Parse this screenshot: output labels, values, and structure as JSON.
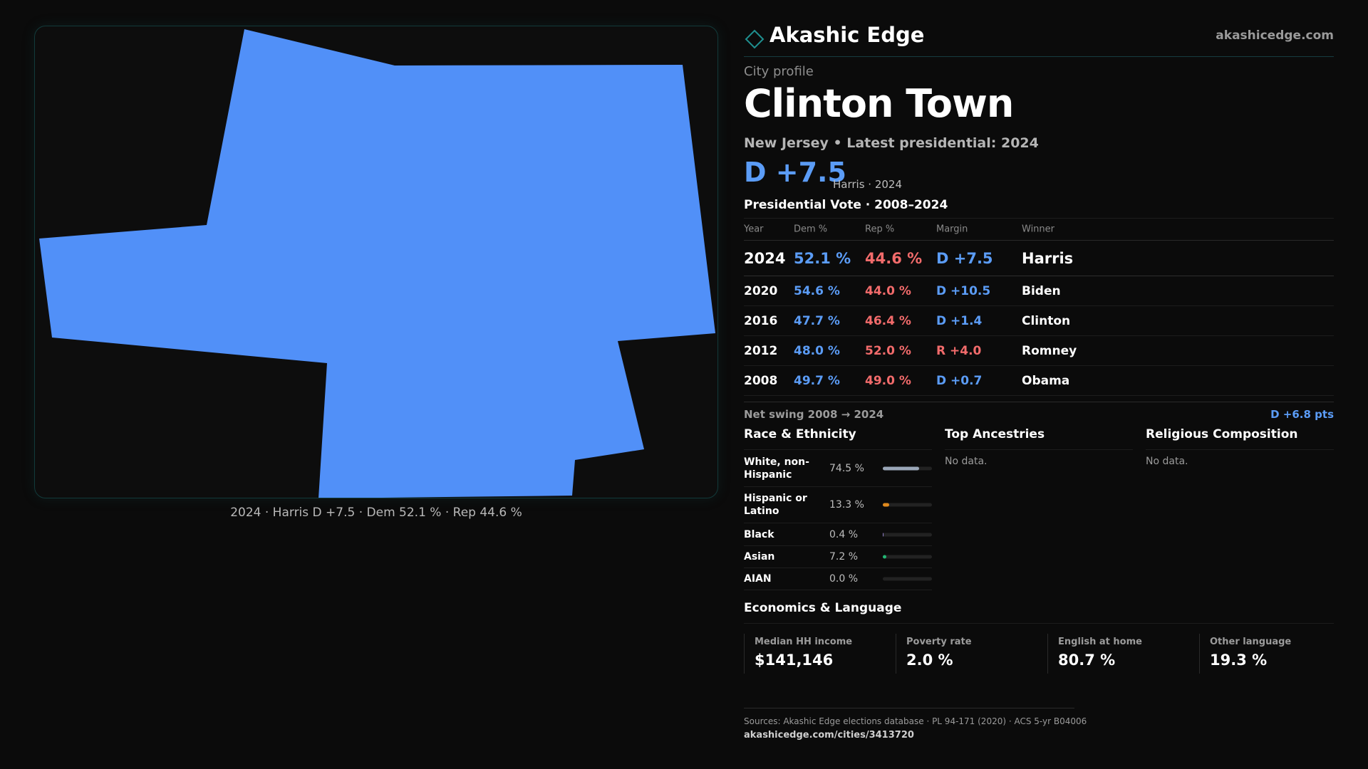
{
  "map": {
    "fill_color": "#5190F8",
    "caption": "2024 · Harris D +7.5 · Dem 52.1 % · Rep 44.6 %"
  },
  "brand": {
    "name": "Akashic Edge",
    "site": "akashicedge.com",
    "logo_icon": "diamond-outline-icon"
  },
  "profile": {
    "eyebrow": "City profile",
    "title": "Clinton Town",
    "subtitle": "New Jersey • Latest presidential: 2024",
    "headline_margin": "D +7.5",
    "headline_note": "Harris · 2024"
  },
  "vote_table": {
    "title": "Presidential Vote · 2008–2024",
    "headers": {
      "year": "Year",
      "dem": "Dem %",
      "rep": "Rep %",
      "margin": "Margin",
      "winner": "Winner"
    },
    "rows": [
      {
        "year": "2024",
        "dem": "52.1 %",
        "rep": "44.6 %",
        "margin": "D +7.5",
        "winner": "Harris",
        "party": "D"
      },
      {
        "year": "2020",
        "dem": "54.6 %",
        "rep": "44.0 %",
        "margin": "D +10.5",
        "winner": "Biden",
        "party": "D"
      },
      {
        "year": "2016",
        "dem": "47.7 %",
        "rep": "46.4 %",
        "margin": "D +1.4",
        "winner": "Clinton",
        "party": "D"
      },
      {
        "year": "2012",
        "dem": "48.0 %",
        "rep": "52.0 %",
        "margin": "R +4.0",
        "winner": "Romney",
        "party": "R"
      },
      {
        "year": "2008",
        "dem": "49.7 %",
        "rep": "49.0 %",
        "margin": "D +0.7",
        "winner": "Obama",
        "party": "D"
      }
    ]
  },
  "swing": {
    "label": "Net swing 2008 → 2024",
    "value": "D +6.8 pts"
  },
  "race": {
    "title": "Race & Ethnicity",
    "rows": [
      {
        "name": "White, non-Hispanic",
        "pct_label": "74.5 %",
        "pct": 74.5,
        "color": "#9aa7b8"
      },
      {
        "name": "Hispanic or Latino",
        "pct_label": "13.3 %",
        "pct": 13.3,
        "color": "#e08a1e"
      },
      {
        "name": "Black",
        "pct_label": "0.4 %",
        "pct": 0.4,
        "color": "#8e7cc3"
      },
      {
        "name": "Asian",
        "pct_label": "7.2 %",
        "pct": 7.2,
        "color": "#22b573"
      },
      {
        "name": "AIAN",
        "pct_label": "0.0 %",
        "pct": 0.0,
        "color": "#888888"
      }
    ]
  },
  "ancestries": {
    "title": "Top Ancestries",
    "empty": "No data."
  },
  "religion": {
    "title": "Religious Composition",
    "empty": "No data."
  },
  "economics": {
    "title": "Economics & Language",
    "stats": [
      {
        "label": "Median HH income",
        "value": "$141,146"
      },
      {
        "label": "Poverty rate",
        "value": "2.0 %"
      },
      {
        "label": "English at home",
        "value": "80.7 %"
      },
      {
        "label": "Other language",
        "value": "19.3 %"
      }
    ]
  },
  "footer": {
    "sources": "Sources: Akashic Edge elections database · PL 94-171 (2020) · ACS 5-yr B04006",
    "url": "akashicedge.com/cities/3413720"
  },
  "colors": {
    "dem": "#5b9cf6",
    "rep": "#f26b6b",
    "accent": "#1f8f8f"
  }
}
